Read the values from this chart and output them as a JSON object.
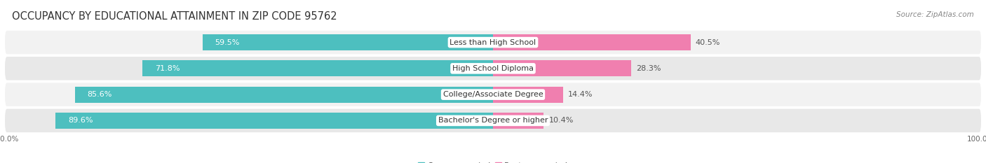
{
  "title": "OCCUPANCY BY EDUCATIONAL ATTAINMENT IN ZIP CODE 95762",
  "source": "Source: ZipAtlas.com",
  "categories": [
    "Less than High School",
    "High School Diploma",
    "College/Associate Degree",
    "Bachelor's Degree or higher"
  ],
  "owner_pct": [
    59.5,
    71.8,
    85.6,
    89.6
  ],
  "renter_pct": [
    40.5,
    28.3,
    14.4,
    10.4
  ],
  "owner_color": "#4DBFBF",
  "renter_color": "#F07FAF",
  "row_bg_light": "#F2F2F2",
  "row_bg_dark": "#E8E8E8",
  "title_fontsize": 10.5,
  "source_fontsize": 7.5,
  "label_fontsize": 8,
  "value_fontsize": 8,
  "legend_fontsize": 8,
  "axis_label_fontsize": 7.5,
  "background_color": "#FFFFFF",
  "bar_height": 0.62
}
